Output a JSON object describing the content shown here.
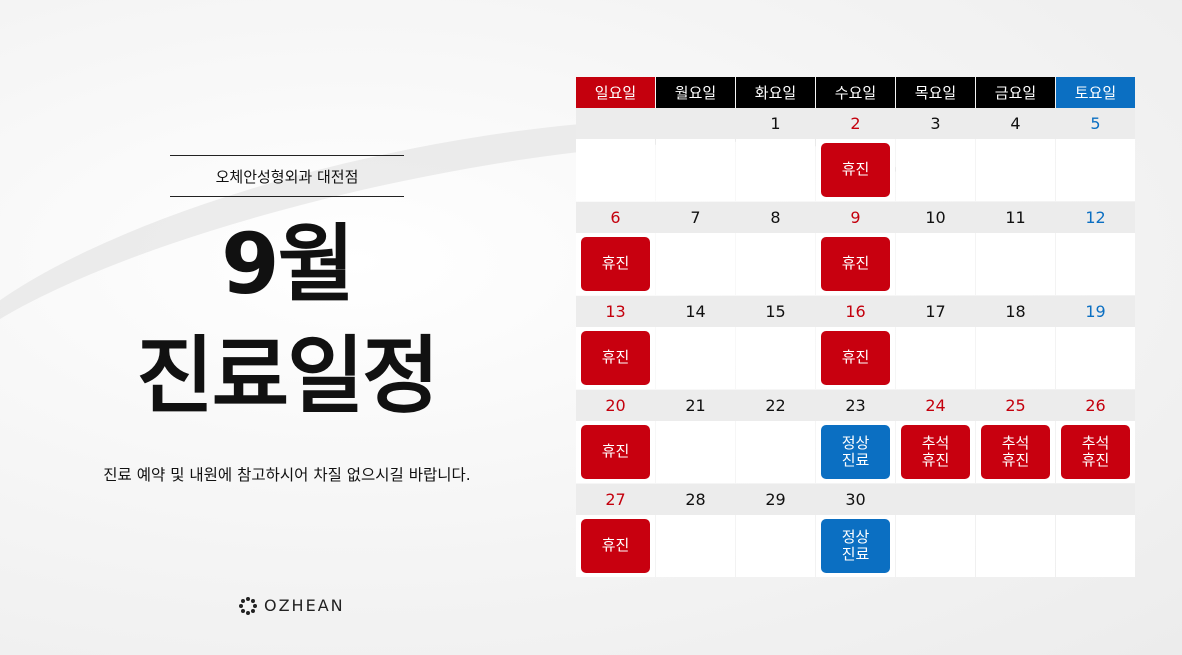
{
  "header": {
    "clinic": "오체안성형외과 대전점",
    "title_lines": [
      "9월",
      "진료일정"
    ],
    "description": "진료 예약 및 내원에 참고하시어 차질 없으시길 바랍니다.",
    "logo": "OZHEAN"
  },
  "calendar": {
    "weekdays": [
      {
        "label": "일요일",
        "color": "#c4000d",
        "text_color": "#c4000d"
      },
      {
        "label": "월요일",
        "color": "#000000",
        "text_color": "#111111"
      },
      {
        "label": "화요일",
        "color": "#000000",
        "text_color": "#111111"
      },
      {
        "label": "수요일",
        "color": "#000000",
        "text_color": "#111111"
      },
      {
        "label": "목요일",
        "color": "#000000",
        "text_color": "#111111"
      },
      {
        "label": "금요일",
        "color": "#000000",
        "text_color": "#111111"
      },
      {
        "label": "토요일",
        "color": "#0b6fc2",
        "text_color": "#0b6fc2"
      }
    ],
    "weeks": [
      [
        null,
        null,
        {
          "date": 1
        },
        {
          "date": 2,
          "status": {
            "lines": [
              "휴진"
            ],
            "color": "#c8000f"
          }
        },
        {
          "date": 3
        },
        {
          "date": 4
        },
        {
          "date": 5
        }
      ],
      [
        {
          "date": 6,
          "status": {
            "lines": [
              "휴진"
            ],
            "color": "#c8000f"
          }
        },
        {
          "date": 7
        },
        {
          "date": 8
        },
        {
          "date": 9,
          "status": {
            "lines": [
              "휴진"
            ],
            "color": "#c8000f"
          }
        },
        {
          "date": 10
        },
        {
          "date": 11
        },
        {
          "date": 12
        }
      ],
      [
        {
          "date": 13,
          "status": {
            "lines": [
              "휴진"
            ],
            "color": "#c8000f"
          }
        },
        {
          "date": 14
        },
        {
          "date": 15
        },
        {
          "date": 16,
          "status": {
            "lines": [
              "휴진"
            ],
            "color": "#c8000f"
          }
        },
        {
          "date": 17
        },
        {
          "date": 18
        },
        {
          "date": 19
        }
      ],
      [
        {
          "date": 20,
          "status": {
            "lines": [
              "휴진"
            ],
            "color": "#c8000f"
          }
        },
        {
          "date": 21
        },
        {
          "date": 22
        },
        {
          "date": 23,
          "status": {
            "lines": [
              "정상",
              "진료"
            ],
            "color": "#0b6fc2"
          }
        },
        {
          "date": 24,
          "status": {
            "lines": [
              "추석",
              "휴진"
            ],
            "color": "#c8000f"
          }
        },
        {
          "date": 25,
          "status": {
            "lines": [
              "추석",
              "휴진"
            ],
            "color": "#c8000f"
          }
        },
        {
          "date": 26,
          "status": {
            "lines": [
              "추석",
              "휴진"
            ],
            "color": "#c8000f"
          }
        }
      ],
      [
        {
          "date": 27,
          "status": {
            "lines": [
              "휴진"
            ],
            "color": "#c8000f"
          }
        },
        {
          "date": 28
        },
        {
          "date": 29
        },
        {
          "date": 30,
          "status": {
            "lines": [
              "정상",
              "진료"
            ],
            "color": "#0b6fc2"
          }
        },
        null,
        null,
        null
      ]
    ]
  }
}
